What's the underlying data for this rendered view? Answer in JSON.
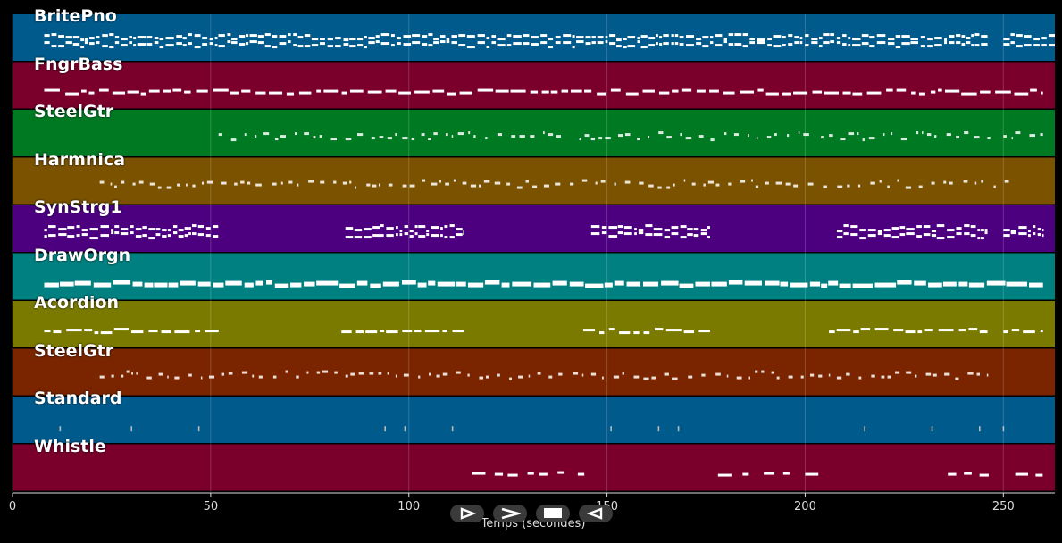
{
  "chart_data": {
    "type": "piano-roll",
    "xlabel": "Temps (secondes)",
    "xlim": [
      0,
      263
    ],
    "xticks": [
      0,
      50,
      100,
      150,
      200,
      250
    ],
    "grid": true,
    "tracks": [
      {
        "name": "BritePno",
        "color": "#005a8c",
        "pattern": "dense2",
        "segments": [
          [
            8,
            246
          ],
          [
            250,
            263
          ]
        ]
      },
      {
        "name": "FngrBass",
        "color": "#7a002b",
        "pattern": "line",
        "segments": [
          [
            8,
            260
          ]
        ]
      },
      {
        "name": "SteelGtr",
        "color": "#007a22",
        "pattern": "sparse",
        "segments": [
          [
            52,
            82
          ],
          [
            84,
            140
          ],
          [
            143,
            202
          ],
          [
            204,
            247
          ],
          [
            250,
            260
          ]
        ]
      },
      {
        "name": "Harmnica",
        "color": "#7a5200",
        "pattern": "sparse",
        "segments": [
          [
            22,
            252
          ]
        ]
      },
      {
        "name": "SynStrg1",
        "color": "#4c0080",
        "pattern": "dense2",
        "segments": [
          [
            8,
            52
          ],
          [
            84,
            114
          ],
          [
            146,
            176
          ],
          [
            208,
            246
          ],
          [
            250,
            260
          ]
        ]
      },
      {
        "name": "DrawOrgn",
        "color": "#008080",
        "pattern": "thick",
        "segments": [
          [
            8,
            260
          ]
        ]
      },
      {
        "name": "Acordion",
        "color": "#7a7a00",
        "pattern": "line",
        "segments": [
          [
            8,
            52
          ],
          [
            83,
            114
          ],
          [
            144,
            176
          ],
          [
            206,
            246
          ],
          [
            250,
            260
          ]
        ]
      },
      {
        "name": "SteelGtr",
        "color": "#7a2500",
        "pattern": "sparse",
        "segments": [
          [
            22,
            82
          ],
          [
            84,
            144
          ],
          [
            146,
            206
          ],
          [
            208,
            246
          ]
        ]
      },
      {
        "name": "Standard",
        "color": "#005a8c",
        "pattern": "ticks",
        "ticks": [
          12,
          30,
          47,
          94,
          99,
          111,
          151,
          163,
          168,
          215,
          232,
          244,
          250
        ]
      },
      {
        "name": "Whistle",
        "color": "#7a002b",
        "pattern": "few",
        "segments": [
          [
            116,
            147
          ],
          [
            178,
            204
          ],
          [
            236,
            248
          ],
          [
            253,
            261
          ]
        ]
      }
    ]
  },
  "controls": {
    "play_icon": "play-icon",
    "forward_icon": "forward-icon",
    "stop_icon": "stop-icon",
    "rewind_icon": "rewind-icon"
  }
}
